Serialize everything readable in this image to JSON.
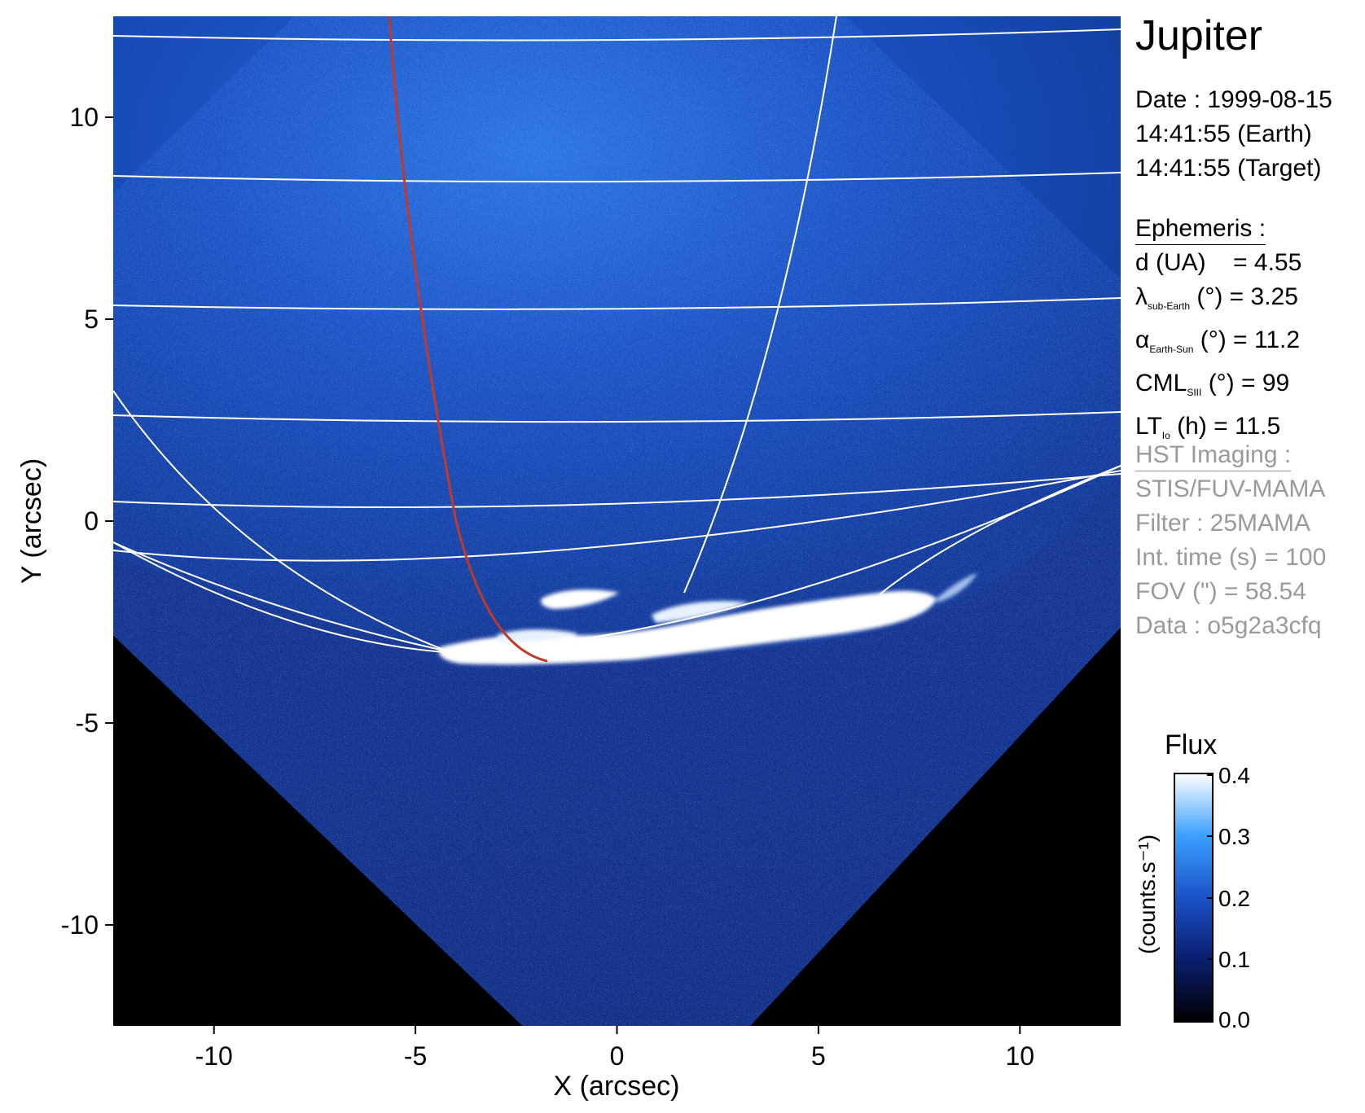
{
  "plot": {
    "x_axis": {
      "label": "X (arcsec)",
      "range": [
        -12.5,
        12.5
      ],
      "ticks": [
        "-10",
        "-5",
        "0",
        "5",
        "10"
      ]
    },
    "y_axis": {
      "label": "Y (arcsec)",
      "range": [
        -12.5,
        12.5
      ],
      "ticks": [
        "10",
        "5",
        "0",
        "-5",
        "-10"
      ]
    },
    "colors": {
      "background": "#000000",
      "image_blue": "#1850c8",
      "aurora": "#ffffff",
      "grid": "#ffffff",
      "track": "#c0392b"
    }
  },
  "info": {
    "title": "Jupiter",
    "date_line": "Date : 1999-08-15",
    "earth_time": "14:41:55 (Earth)",
    "target_time": "14:41:55 (Target)",
    "ephemeris_header": "Ephemeris :",
    "d": {
      "main": "d (UA)",
      "value": "= 4.55"
    },
    "lambda": {
      "main": "λ",
      "sub": "sub-Earth",
      "rest": " (°) = 3.25"
    },
    "alpha": {
      "main": "α",
      "sub": "Earth-Sun",
      "rest": " (°) = 11.2"
    },
    "cml": {
      "main": "CML",
      "sub": "SIII",
      "rest": " (°) = 99"
    },
    "lt": {
      "main": "LT",
      "sub": "Io",
      "rest": " (h) = 11.5"
    },
    "hst_header": "HST Imaging :",
    "instrument": "STIS/FUV-MAMA",
    "filter": "Filter : 25MAMA",
    "int_time": "Int. time (s) = 100",
    "fov": "FOV (\") = 58.54",
    "data": "Data : o5g2a3cfq"
  },
  "colorbar": {
    "title": "Flux",
    "unit": "(counts.s⁻¹)",
    "ticks": [
      "0.4",
      "0.3",
      "0.2",
      "0.1",
      "0.0"
    ],
    "colors": [
      "#000000",
      "#0a1e6e",
      "#1b52c8",
      "#3aa0ff",
      "#ffffff"
    ]
  }
}
